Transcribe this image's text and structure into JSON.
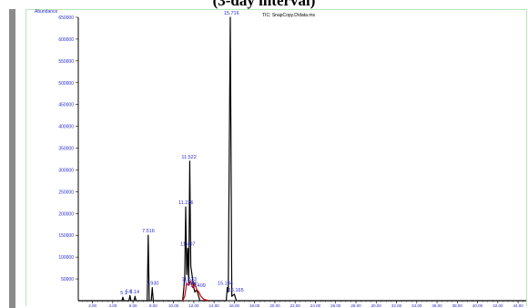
{
  "caption": "(3-day interval)",
  "chart_data": {
    "type": "line",
    "ylabel": "Abundance",
    "tic_label": "TIC: SnapCopy.D\\data.ms",
    "ylim": [
      0,
      6500000
    ],
    "xlim": [
      0.6,
      44.8
    ],
    "y_ticks": [
      "50000",
      "100000",
      "150000",
      "200000",
      "250000",
      "300000",
      "350000",
      "400000",
      "450000",
      "500000",
      "550000",
      "600000",
      "650000"
    ],
    "y_tick_values": [
      50000,
      100000,
      150000,
      200000,
      250000,
      300000,
      350000,
      400000,
      450000,
      500000,
      550000,
      600000,
      650000
    ],
    "x_tick_labels": [
      "2.00",
      "4.00",
      "6.00",
      "8.00",
      "10.00",
      "12.00",
      "14.00",
      "16.00",
      "18.00",
      "20.00",
      "22.00",
      "24.00",
      "26.00",
      "28.00",
      "30.00",
      "32.00",
      "34.00",
      "36.00",
      "38.00",
      "40.00",
      "42.00",
      "44.00"
    ],
    "x_tick_values": [
      2,
      4,
      6,
      8,
      10,
      12,
      14,
      16,
      18,
      20,
      22,
      24,
      26,
      28,
      30,
      32,
      34,
      36,
      38,
      40,
      42,
      44
    ],
    "series": [
      {
        "color": "#000000",
        "points": [
          [
            0.6,
            0
          ],
          [
            4.9,
            0
          ],
          [
            5.0,
            80000
          ],
          [
            5.1,
            0
          ],
          [
            5.6,
            0
          ],
          [
            5.7,
            120000
          ],
          [
            5.8,
            0
          ],
          [
            6.1,
            0
          ],
          [
            6.2,
            100000
          ],
          [
            6.3,
            0
          ],
          [
            7.4,
            0
          ],
          [
            7.5,
            1500000
          ],
          [
            7.6,
            0
          ],
          [
            7.8,
            0
          ],
          [
            7.9,
            300000
          ],
          [
            8.0,
            0
          ],
          [
            10.9,
            0
          ],
          [
            11.1,
            500000
          ],
          [
            11.2,
            2150000
          ],
          [
            11.3,
            600000
          ],
          [
            11.4,
            1200000
          ],
          [
            11.5,
            400000
          ],
          [
            11.6,
            3200000
          ],
          [
            11.7,
            800000
          ],
          [
            12.0,
            300000
          ],
          [
            12.1,
            200000
          ],
          [
            12.3,
            250000
          ],
          [
            12.6,
            0
          ],
          [
            14.5,
            0
          ],
          [
            15.2,
            0
          ],
          [
            15.3,
            300000
          ],
          [
            15.4,
            200000
          ],
          [
            15.6,
            6500000
          ],
          [
            15.75,
            100000
          ],
          [
            16.0,
            150000
          ],
          [
            16.2,
            0
          ],
          [
            44.8,
            0
          ]
        ]
      },
      {
        "color": "#d40000",
        "points": [
          [
            10.9,
            0
          ],
          [
            11.1,
            100000
          ],
          [
            11.3,
            400000
          ],
          [
            11.5,
            350000
          ],
          [
            11.7,
            450000
          ],
          [
            11.9,
            300000
          ],
          [
            12.1,
            400000
          ],
          [
            12.3,
            250000
          ],
          [
            12.5,
            200000
          ],
          [
            12.7,
            100000
          ],
          [
            13.0,
            30000
          ],
          [
            13.5,
            0
          ]
        ]
      }
    ],
    "peaks": [
      {
        "label": "5.1",
        "x": 5.1,
        "y": 80000
      },
      {
        "label": "5.6",
        "x": 5.6,
        "y": 120000
      },
      {
        "label": "6.14",
        "x": 6.14,
        "y": 100000
      },
      {
        "label": "7.516",
        "x": 7.516,
        "y": 1500000
      },
      {
        "label": "7.930",
        "x": 7.93,
        "y": 300000
      },
      {
        "label": "11.226",
        "x": 11.226,
        "y": 2150000
      },
      {
        "label": "11.407",
        "x": 11.407,
        "y": 1200000
      },
      {
        "label": "11.522",
        "x": 11.522,
        "y": 3200000
      },
      {
        "label": "11.533",
        "x": 11.533,
        "y": 400000
      },
      {
        "label": "11.609",
        "x": 11.609,
        "y": 300000
      },
      {
        "label": "12.409",
        "x": 12.409,
        "y": 250000
      },
      {
        "label": "15.104",
        "x": 15.104,
        "y": 300000
      },
      {
        "label": "15.716",
        "x": 15.716,
        "y": 6500000
      },
      {
        "label": "16.165",
        "x": 16.165,
        "y": 150000
      }
    ]
  }
}
